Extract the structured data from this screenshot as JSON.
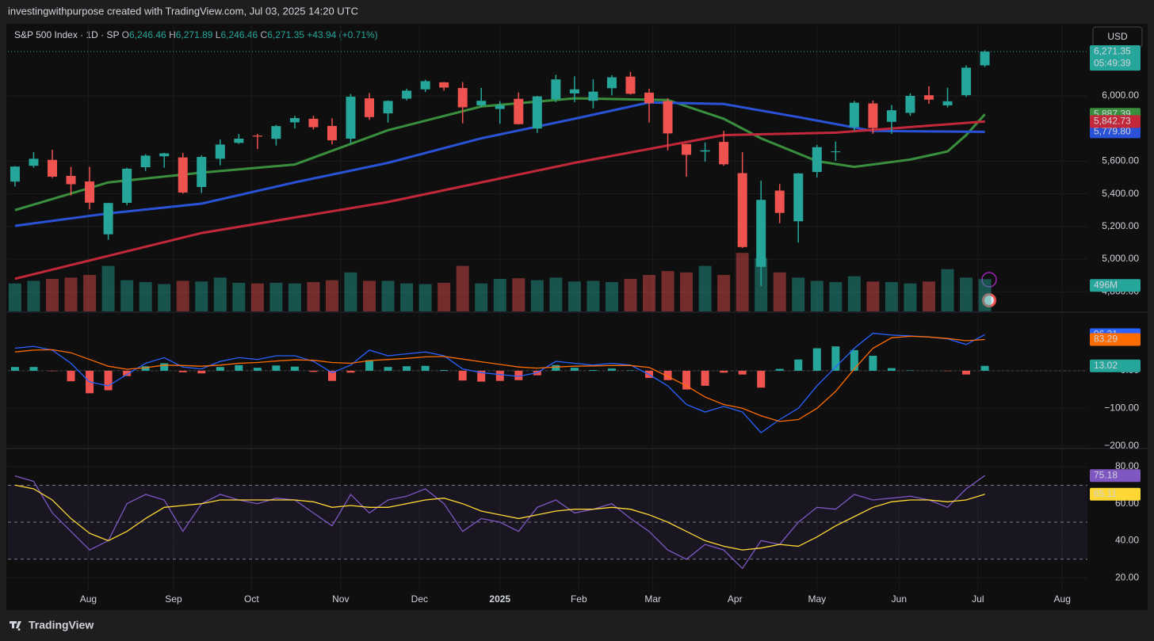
{
  "header": {
    "title": "investingwithpurpose created with TradingView.com, Jul 03, 2025 14:20 UTC"
  },
  "legend": {
    "name": "S&P 500 Index · 1D · SP",
    "fields": [
      {
        "key": "O",
        "value": "6,246.46"
      },
      {
        "key": "H",
        "value": "6,271.89"
      },
      {
        "key": "L",
        "value": "6,246.46"
      },
      {
        "key": "C",
        "value": "6,271.35"
      }
    ],
    "change": "+43.94 (+0.71%)"
  },
  "currency": "USD",
  "footer": {
    "brand": "TradingView"
  },
  "chart_data": [
    {
      "type": "candlestick",
      "x": [
        0,
        1,
        2,
        3,
        4,
        5,
        6,
        7,
        8,
        9,
        10,
        11,
        12,
        13,
        14,
        15,
        16,
        17,
        18,
        19,
        20,
        21,
        22,
        23,
        24,
        25,
        26,
        27,
        28,
        29,
        30,
        31,
        32,
        33,
        34,
        35,
        36,
        37,
        38,
        39,
        40,
        41,
        42,
        43,
        44,
        45,
        46,
        47,
        48,
        49,
        50,
        51,
        52
      ],
      "ohlc": [
        [
          5475,
          5570,
          5445,
          5567
        ],
        [
          5572,
          5655,
          5560,
          5615
        ],
        [
          5608,
          5670,
          5497,
          5505
        ],
        [
          5510,
          5565,
          5390,
          5459
        ],
        [
          5476,
          5566,
          5305,
          5346
        ],
        [
          5152,
          5345,
          5119,
          5344
        ],
        [
          5345,
          5560,
          5330,
          5554
        ],
        [
          5563,
          5643,
          5540,
          5634
        ],
        [
          5630,
          5651,
          5560,
          5648
        ],
        [
          5623,
          5651,
          5402,
          5408
        ],
        [
          5442,
          5636,
          5406,
          5626
        ],
        [
          5615,
          5733,
          5575,
          5702
        ],
        [
          5712,
          5767,
          5706,
          5738
        ],
        [
          5757,
          5767,
          5674,
          5751
        ],
        [
          5737,
          5822,
          5696,
          5815
        ],
        [
          5838,
          5878,
          5800,
          5864
        ],
        [
          5860,
          5878,
          5794,
          5808
        ],
        [
          5816,
          5863,
          5703,
          5728
        ],
        [
          5738,
          6012,
          5707,
          5995
        ],
        [
          5985,
          6017,
          5853,
          5870
        ],
        [
          5893,
          5972,
          5837,
          5969
        ],
        [
          5983,
          6044,
          5972,
          6032
        ],
        [
          6040,
          6099,
          6023,
          6090
        ],
        [
          6083,
          6085,
          6032,
          6051
        ],
        [
          6048,
          6085,
          5832,
          5930
        ],
        [
          5942,
          6049,
          5933,
          5970
        ],
        [
          5920,
          5968,
          5829,
          5942
        ],
        [
          5982,
          6021,
          5825,
          5827
        ],
        [
          5800,
          6000,
          5773,
          5997
        ],
        [
          5980,
          6129,
          5962,
          6101
        ],
        [
          6015,
          6120,
          5962,
          6040
        ],
        [
          5970,
          6101,
          5923,
          6026
        ],
        [
          6047,
          6127,
          6003,
          6114
        ],
        [
          6118,
          6147,
          6008,
          6013
        ],
        [
          6020,
          6044,
          5837,
          5955
        ],
        [
          5968,
          5986,
          5666,
          5770
        ],
        [
          5705,
          5706,
          5505,
          5639
        ],
        [
          5659,
          5715,
          5597,
          5667
        ],
        [
          5718,
          5786,
          5572,
          5581
        ],
        [
          5527,
          5655,
          5069,
          5074
        ],
        [
          4953,
          5482,
          4835,
          5363
        ],
        [
          5420,
          5460,
          5220,
          5283
        ],
        [
          5232,
          5528,
          5101,
          5525
        ],
        [
          5534,
          5700,
          5500,
          5686
        ],
        [
          5655,
          5720,
          5602,
          5660
        ],
        [
          5808,
          5969,
          5786,
          5958
        ],
        [
          5954,
          5971,
          5768,
          5803
        ],
        [
          5841,
          5944,
          5767,
          5912
        ],
        [
          5896,
          6016,
          5878,
          6000
        ],
        [
          6004,
          6059,
          5952,
          5977
        ],
        [
          5942,
          6050,
          5929,
          5967
        ],
        [
          6004,
          6187,
          5993,
          6173
        ],
        [
          6187,
          6280,
          6177,
          6271.35
        ]
      ],
      "colors": {
        "up": "#26a69a",
        "down": "#ef5350"
      },
      "volume": {
        "values": [
          430,
          470,
          500,
          520,
          560,
          700,
          480,
          450,
          420,
          470,
          460,
          520,
          440,
          430,
          440,
          430,
          450,
          480,
          600,
          470,
          470,
          430,
          420,
          440,
          700,
          430,
          500,
          510,
          480,
          520,
          460,
          470,
          450,
          500,
          560,
          620,
          600,
          700,
          560,
          900,
          820,
          600,
          520,
          470,
          450,
          540,
          460,
          450,
          430,
          460,
          650,
          520,
          496
        ],
        "vlim": [
          0,
          4400
        ],
        "value_label": "496M"
      },
      "moving_averages": [
        {
          "color": "#3a8f3e",
          "x": [
            0,
            5,
            10,
            15,
            20,
            25,
            30,
            35,
            38,
            40,
            43,
            45,
            48,
            50,
            51,
            52
          ],
          "values": [
            5300,
            5470,
            5530,
            5580,
            5790,
            5935,
            5985,
            5975,
            5860,
            5740,
            5600,
            5565,
            5610,
            5660,
            5760,
            5887.39
          ],
          "value_label": "5,887.39"
        },
        {
          "color": "#2a52d6",
          "x": [
            0,
            5,
            10,
            15,
            20,
            25,
            30,
            34,
            38,
            42,
            46,
            52
          ],
          "values": [
            5204,
            5280,
            5340,
            5470,
            5590,
            5740,
            5860,
            5960,
            5950,
            5870,
            5785,
            5779.8
          ],
          "value_label": "5,779.80"
        },
        {
          "color": "#c2283a",
          "x": [
            0,
            10,
            20,
            30,
            38,
            44,
            52
          ],
          "values": [
            4880,
            5160,
            5350,
            5590,
            5760,
            5775,
            5842.73
          ],
          "value_label": "5,842.73"
        }
      ],
      "last_price": {
        "value": 6271.35,
        "label": "6,271.35",
        "countdown": "05:49:39"
      },
      "xlim": [
        -0.38,
        57.5
      ],
      "xticks": [
        {
          "value": 3.93,
          "label": "Aug"
        },
        {
          "value": 8.5,
          "label": "Sep"
        },
        {
          "value": 12.68,
          "label": "Oct"
        },
        {
          "value": 17.46,
          "label": "Nov"
        },
        {
          "value": 21.69,
          "label": "Dec"
        },
        {
          "value": 26.0,
          "label": "2025"
        },
        {
          "value": 30.23,
          "label": "Feb"
        },
        {
          "value": 34.2,
          "label": "Mar"
        },
        {
          "value": 38.6,
          "label": "Apr"
        },
        {
          "value": 43.0,
          "label": "May"
        },
        {
          "value": 47.4,
          "label": "Jun"
        },
        {
          "value": 51.63,
          "label": "Jul"
        },
        {
          "value": 56.15,
          "label": "Aug"
        }
      ],
      "ylim": [
        4680,
        6432
      ],
      "yticks": [
        {
          "value": 4800,
          "label": "4,800.00"
        },
        {
          "value": 5000,
          "label": "5,000.00"
        },
        {
          "value": 5200,
          "label": "5,200.00"
        },
        {
          "value": 5400,
          "label": "5,400.00"
        },
        {
          "value": 5600,
          "label": "5,600.00"
        },
        {
          "value": 6000,
          "label": "6,000.00"
        }
      ]
    },
    {
      "type": "macd",
      "series": [
        {
          "color": "#2962ff",
          "values": [
            60,
            65,
            55,
            20,
            -30,
            -40,
            -10,
            20,
            35,
            10,
            5,
            25,
            35,
            30,
            40,
            40,
            25,
            -5,
            15,
            55,
            40,
            45,
            50,
            40,
            5,
            -5,
            -10,
            -15,
            -5,
            25,
            20,
            15,
            20,
            15,
            -10,
            -40,
            -90,
            -110,
            -95,
            -110,
            -165,
            -130,
            -100,
            -40,
            10,
            60,
            100,
            95,
            93,
            90,
            85,
            70,
            96.31
          ],
          "value_label": "96.31"
        },
        {
          "color": "#ff6d00",
          "values": [
            50,
            55,
            56,
            48,
            30,
            12,
            4,
            8,
            15,
            14,
            12,
            15,
            20,
            22,
            26,
            29,
            28,
            22,
            20,
            27,
            30,
            33,
            37,
            38,
            31,
            24,
            17,
            10,
            7,
            10,
            12,
            13,
            14,
            14,
            9,
            -15,
            -40,
            -70,
            -90,
            -100,
            -120,
            -135,
            -130,
            -100,
            -55,
            5,
            60,
            88,
            92,
            90,
            86,
            80,
            83.29
          ],
          "value_label": "83.29"
        }
      ],
      "histogram": {
        "values": [
          10,
          10,
          -1,
          -28,
          -60,
          -52,
          -14,
          12,
          20,
          -4,
          -7,
          10,
          15,
          8,
          14,
          11,
          -3,
          -27,
          -5,
          28,
          10,
          12,
          13,
          2,
          -26,
          -29,
          -27,
          -25,
          -12,
          15,
          8,
          2,
          6,
          1,
          -19,
          -25,
          -50,
          -40,
          -5,
          -10,
          -45,
          5,
          30,
          60,
          65,
          55,
          40,
          7,
          1,
          0,
          -1,
          -10,
          13.02
        ],
        "value_label": "13.02",
        "colors": {
          "up": "#26a69a",
          "down": "#ef5350"
        }
      },
      "ylim": [
        -205,
        154
      ],
      "yticks": [
        {
          "value": 0,
          "label": "0.00"
        },
        {
          "value": -100,
          "label": "−100.00"
        },
        {
          "value": -200,
          "label": "−200.00"
        }
      ]
    },
    {
      "type": "rsi",
      "series": [
        {
          "color": "#7e57c2",
          "values": [
            75,
            72,
            55,
            45,
            35,
            40,
            60,
            65,
            62,
            45,
            60,
            65,
            62,
            60,
            63,
            62,
            55,
            48,
            65,
            55,
            62,
            64,
            68,
            60,
            45,
            52,
            50,
            45,
            58,
            62,
            55,
            57,
            60,
            52,
            45,
            35,
            30,
            38,
            35,
            25,
            40,
            38,
            50,
            58,
            57,
            65,
            62,
            63,
            64,
            62,
            58,
            68,
            75.18
          ],
          "value_label": "75.18"
        },
        {
          "color": "#fdd835",
          "values": [
            70,
            68,
            62,
            52,
            44,
            40,
            45,
            52,
            58,
            59,
            60,
            62,
            62,
            62,
            62,
            62,
            61,
            58,
            59,
            58,
            58,
            60,
            62,
            63,
            60,
            56,
            54,
            52,
            54,
            56,
            57,
            57,
            58,
            57,
            54,
            50,
            45,
            40,
            37,
            35,
            36,
            38,
            37,
            42,
            48,
            53,
            58,
            61,
            62,
            62,
            61,
            62,
            65.11
          ],
          "value_label": "65.11"
        }
      ],
      "bands": [
        70,
        50,
        30
      ],
      "ylim": [
        13.2,
        89.4
      ],
      "yticks": [
        {
          "value": 20,
          "label": "20.00"
        },
        {
          "value": 40,
          "label": "40.00"
        },
        {
          "value": 60,
          "label": "60.00"
        },
        {
          "value": 80,
          "label": "80.00"
        }
      ]
    }
  ]
}
